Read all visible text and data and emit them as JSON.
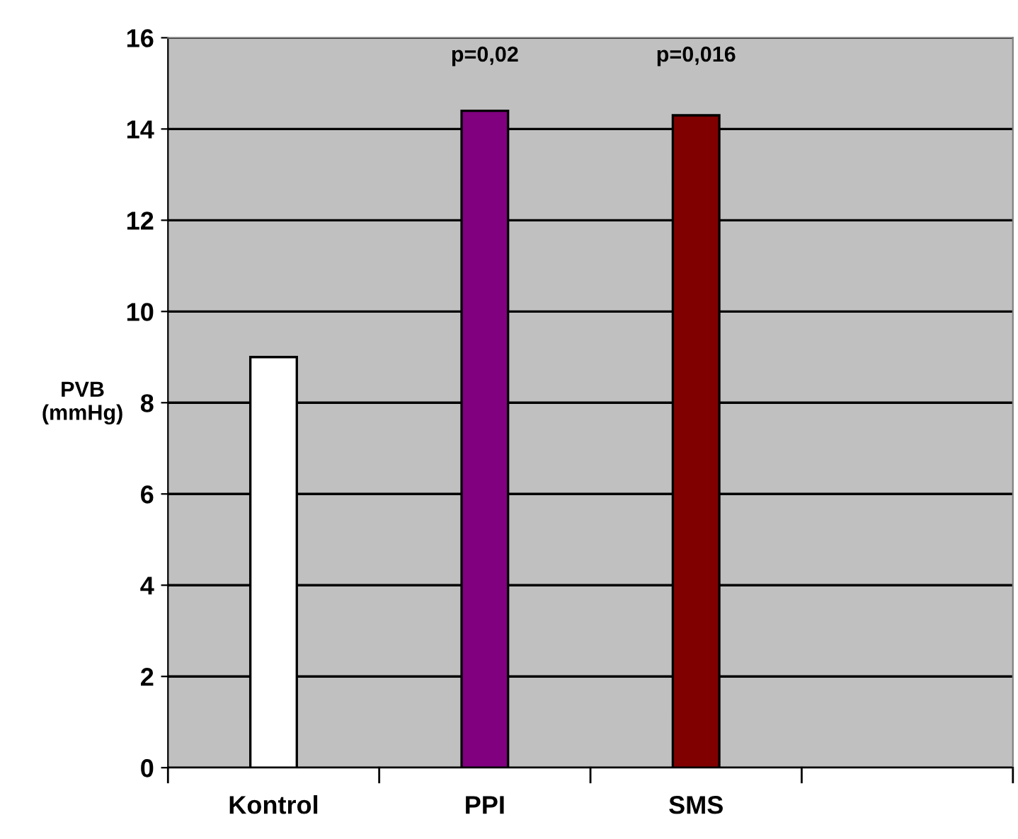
{
  "chart_data": {
    "type": "bar",
    "ylabel": "PVB\n(mmHg)",
    "categories": [
      "Kontrol",
      "PPI",
      "SMS",
      null
    ],
    "values": [
      9.0,
      14.4,
      14.3,
      null
    ],
    "colors": [
      "#ffffff",
      "#800080",
      "#800000",
      "#c0c0c0"
    ],
    "ylim": [
      0,
      16
    ],
    "yticks": [
      0,
      2,
      4,
      6,
      8,
      10,
      12,
      14,
      16
    ],
    "grid": "y",
    "annotations": [
      "p=0,02",
      "p=0,016"
    ]
  }
}
